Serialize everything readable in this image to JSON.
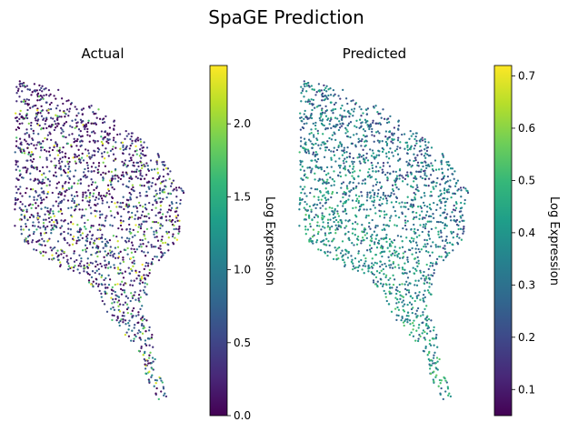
{
  "figure": {
    "suptitle": "SpaGE Prediction"
  },
  "colormap": {
    "name": "viridis",
    "stops": [
      "#440154",
      "#482878",
      "#3e4989",
      "#31688e",
      "#26828e",
      "#1f9e89",
      "#35b779",
      "#6ece58",
      "#b5de2b",
      "#fde725"
    ]
  },
  "chart_data": [
    {
      "type": "scatter",
      "title": "Actual",
      "xlabel": "",
      "ylabel": "",
      "axes_visible": false,
      "color_range": [
        0,
        2.4
      ],
      "colorbar": {
        "label": "Log Expression",
        "ticks": [
          "0.0",
          "0.5",
          "1.0",
          "1.5",
          "2.0"
        ],
        "tick_values": [
          0,
          0.5,
          1.0,
          1.5,
          2.0
        ]
      },
      "series": [
        {
          "name": "cells",
          "n_points": 1800,
          "value_distribution": "mostly 0-1.0, scattered high values 1.5-2.4",
          "seed": 11
        }
      ]
    },
    {
      "type": "scatter",
      "title": "Predicted",
      "xlabel": "",
      "ylabel": "",
      "axes_visible": false,
      "color_range": [
        0.05,
        0.72
      ],
      "colorbar": {
        "label": "Log Expression",
        "ticks": [
          "0.1",
          "0.2",
          "0.3",
          "0.4",
          "0.5",
          "0.6",
          "0.7"
        ],
        "tick_values": [
          0.1,
          0.2,
          0.3,
          0.4,
          0.5,
          0.6,
          0.7
        ]
      },
      "series": [
        {
          "name": "cells",
          "n_points": 1800,
          "value_distribution": "centered near 0.35-0.5, higher toward lower-left",
          "seed": 11
        }
      ]
    }
  ]
}
